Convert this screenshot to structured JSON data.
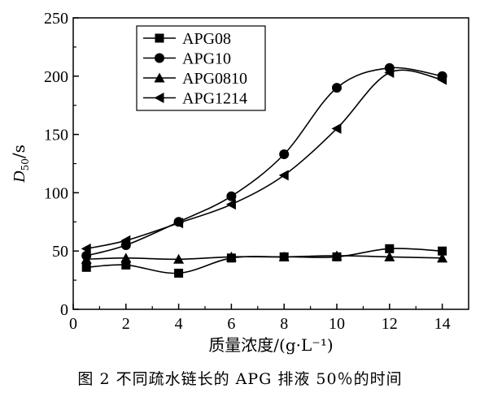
{
  "chart_data": {
    "type": "scatter",
    "title": "",
    "xlabel": "质量浓度/(g·L⁻¹)",
    "ylabel_main": "D",
    "ylabel_sub": "50",
    "ylabel_unit": "/s",
    "xlim": [
      0,
      15
    ],
    "ylim": [
      0,
      250
    ],
    "xticks": [
      0,
      2,
      4,
      6,
      8,
      10,
      12,
      14
    ],
    "yticks": [
      0,
      50,
      100,
      150,
      200,
      250
    ],
    "grid": false,
    "legend_position": "top-left",
    "series": [
      {
        "name": "APG08",
        "marker": "square",
        "x": [
          0.5,
          2,
          4,
          6,
          8,
          10,
          12,
          14
        ],
        "y": [
          36,
          38,
          31,
          44,
          45,
          45,
          52,
          50
        ]
      },
      {
        "name": "APG10",
        "marker": "circle",
        "x": [
          0.5,
          2,
          4,
          6,
          8,
          10,
          12,
          14
        ],
        "y": [
          46,
          55,
          75,
          97,
          133,
          190,
          207,
          200
        ]
      },
      {
        "name": "APG0810",
        "marker": "triangle-up",
        "x": [
          0.5,
          2,
          4,
          6,
          8,
          10,
          12,
          14
        ],
        "y": [
          43,
          44,
          43,
          45,
          45,
          46,
          45,
          44
        ]
      },
      {
        "name": "APG1214",
        "marker": "triangle-left",
        "x": [
          0.5,
          2,
          4,
          6,
          8,
          10,
          12,
          14
        ],
        "y": [
          52,
          59,
          74,
          90,
          115,
          155,
          203,
          197
        ]
      }
    ]
  },
  "caption": "图 2   不同疏水链长的 APG 排液 50％的时间"
}
